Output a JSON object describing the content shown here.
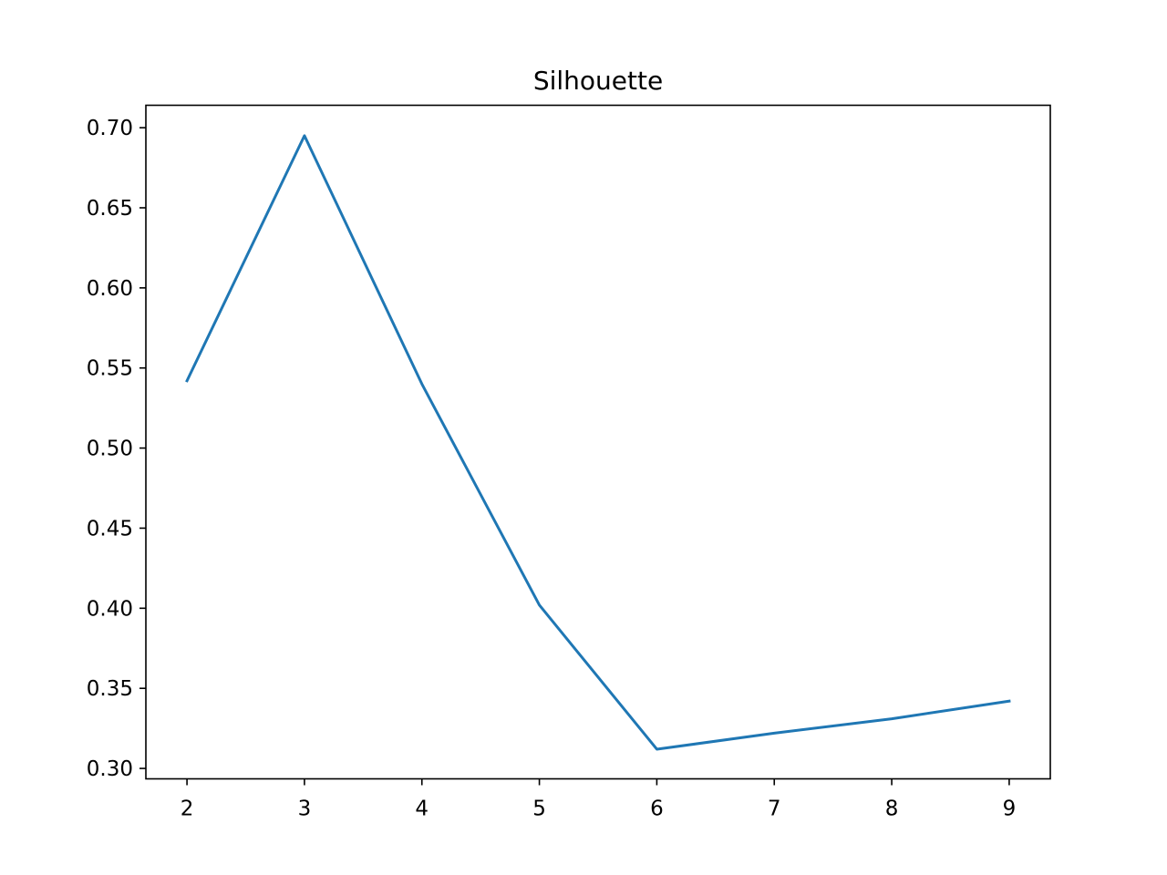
{
  "chart_data": {
    "type": "line",
    "title": "Silhouette",
    "xlabel": "",
    "ylabel": "",
    "x": [
      2,
      3,
      4,
      5,
      6,
      7,
      8,
      9
    ],
    "series": [
      {
        "values": [
          0.542,
          0.695,
          0.54,
          0.402,
          0.312,
          0.322,
          0.331,
          0.342
        ]
      }
    ],
    "xticks": [
      2,
      3,
      4,
      5,
      6,
      7,
      8,
      9
    ],
    "xtick_labels": [
      "2",
      "3",
      "4",
      "5",
      "6",
      "7",
      "8",
      "9"
    ],
    "yticks": [
      0.3,
      0.35,
      0.4,
      0.45,
      0.5,
      0.55,
      0.6,
      0.65,
      0.7
    ],
    "ytick_labels": [
      "0.30",
      "0.35",
      "0.40",
      "0.45",
      "0.50",
      "0.55",
      "0.60",
      "0.65",
      "0.70"
    ],
    "xlim": [
      1.65,
      9.35
    ],
    "ylim": [
      0.2935,
      0.714
    ],
    "grid": false,
    "line_color": "#1f77b4",
    "axis_color": "#000000"
  }
}
